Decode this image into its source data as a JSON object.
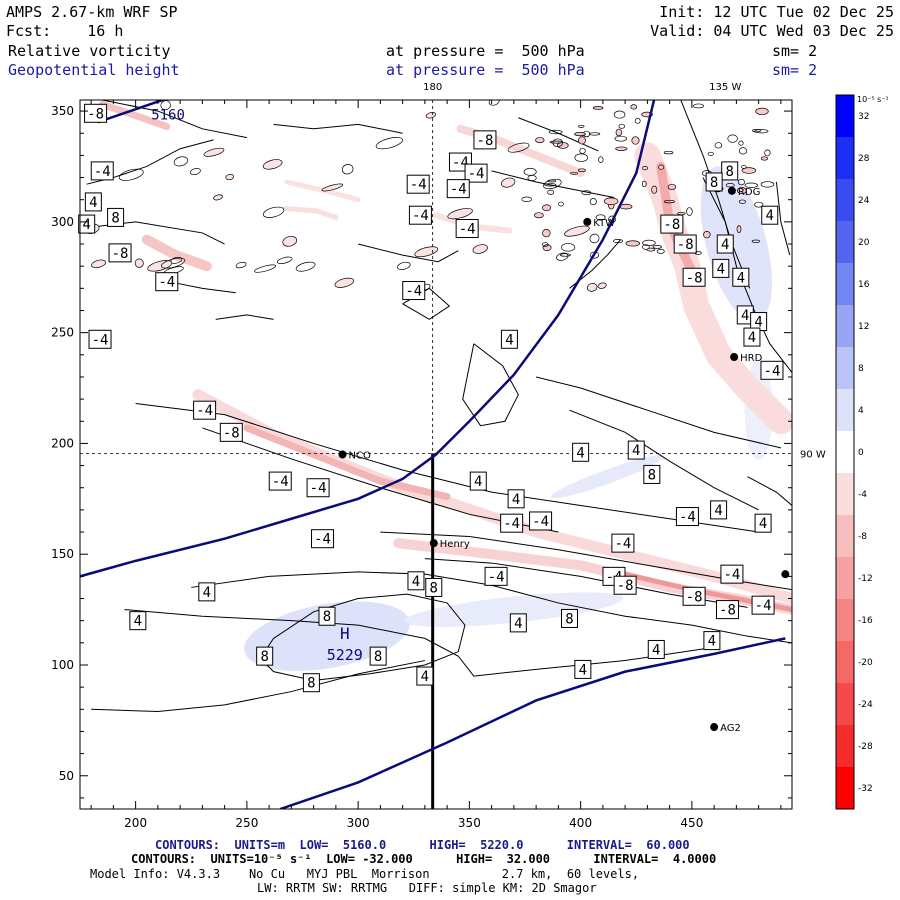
{
  "header": {
    "model": "AMPS 2.67-km WRF SP",
    "fcst": "Fcst:    16 h",
    "init": "Init: 12 UTC Tue 02 Dec 25",
    "valid": "Valid: 04 UTC Wed 03 Dec 25",
    "field1_name": "Relative vorticity",
    "field1_level": "at pressure =  500 hPa",
    "field1_sm": "sm= 2",
    "field2_name": "Geopotential height",
    "field2_level": "at pressure =  500 hPa",
    "field2_sm": "sm= 2"
  },
  "footer": {
    "contours1": "CONTOURS:  UNITS=m  LOW=  5160.0      HIGH=  5220.0      INTERVAL=  60.000",
    "contours2": "CONTOURS:  UNITS=10⁻⁵ s⁻¹  LOW= -32.000      HIGH=  32.000      INTERVAL=  4.0000",
    "model_info": "Model Info: V4.3.3    No Cu   MYJ PBL  Morrison          2.7 km,  60 levels,",
    "model_info2": "LW: RRTM SW: RRTMG   DIFF: simple KM: 2D Smagor"
  },
  "chart_data": {
    "type": "contour",
    "xlim": [
      175,
      495
    ],
    "ylim": [
      35,
      355
    ],
    "x_ticks": [
      200,
      250,
      300,
      350,
      400,
      450
    ],
    "y_ticks": [
      50,
      100,
      150,
      200,
      250,
      300,
      350
    ],
    "grid_annotations": [
      {
        "text": "180",
        "x": 333.5,
        "y": 355
      },
      {
        "text": "135 W",
        "x": 465,
        "y": 355
      },
      {
        "text": "90 W",
        "x": 495,
        "y": 195.5
      }
    ],
    "crosshair": {
      "x": 333.5,
      "y": 195.5
    },
    "cross_section_line": {
      "x": 333.5,
      "y_from": 35,
      "y_to": 195.5
    },
    "stations": [
      {
        "name": "NCO",
        "x": 293,
        "y": 195
      },
      {
        "name": "Henry",
        "x": 334,
        "y": 155
      },
      {
        "name": "KTW",
        "x": 403,
        "y": 300
      },
      {
        "name": "RDG",
        "x": 468,
        "y": 314
      },
      {
        "name": "HRD",
        "x": 469,
        "y": 239
      },
      {
        "name": "AG2",
        "x": 460,
        "y": 72
      },
      {
        "name": "",
        "x": 492,
        "y": 141
      }
    ],
    "height_contours": [
      {
        "value": 5160,
        "label_text": "5160",
        "label": {
          "x": 207,
          "y": 349
        },
        "points": [
          [
            175,
            140
          ],
          [
            200,
            147
          ],
          [
            240,
            157
          ],
          [
            270,
            166
          ],
          [
            300,
            175
          ],
          [
            320,
            184
          ],
          [
            335,
            195
          ],
          [
            350,
            210
          ],
          [
            370,
            231
          ],
          [
            390,
            258
          ],
          [
            410,
            292
          ],
          [
            425,
            322
          ],
          [
            433,
            355
          ]
        ]
      },
      {
        "value": 5160,
        "points": [
          [
            183,
            345
          ],
          [
            215,
            356
          ]
        ]
      },
      {
        "value": 5220,
        "points": [
          [
            265,
            35
          ],
          [
            300,
            47
          ],
          [
            340,
            65
          ],
          [
            380,
            84
          ],
          [
            420,
            97
          ],
          [
            460,
            105
          ],
          [
            492,
            112
          ]
        ]
      }
    ],
    "height_max": {
      "label": "H",
      "value": "5229",
      "x": 294,
      "y": 110
    },
    "vorticity_labels": [
      {
        "t": "-8",
        "x": 182,
        "y": 349
      },
      {
        "t": "-8",
        "x": 357,
        "y": 337
      },
      {
        "t": "-4",
        "x": 346,
        "y": 327
      },
      {
        "t": "-4",
        "x": 353,
        "y": 322
      },
      {
        "t": "-4",
        "x": 185,
        "y": 323
      },
      {
        "t": "-4",
        "x": 345,
        "y": 315
      },
      {
        "t": "-4",
        "x": 327,
        "y": 317
      },
      {
        "t": "-4",
        "x": 328,
        "y": 303
      },
      {
        "t": "-4",
        "x": 349,
        "y": 297
      },
      {
        "t": "4",
        "x": 181,
        "y": 309
      },
      {
        "t": "4",
        "x": 178,
        "y": 299
      },
      {
        "t": "8",
        "x": 191,
        "y": 302
      },
      {
        "t": "-8",
        "x": 193,
        "y": 286
      },
      {
        "t": "-4",
        "x": 214,
        "y": 273
      },
      {
        "t": "-4",
        "x": 325,
        "y": 269
      },
      {
        "t": "-4",
        "x": 184,
        "y": 247
      },
      {
        "t": "4",
        "x": 368,
        "y": 247
      },
      {
        "t": "-4",
        "x": 231,
        "y": 215
      },
      {
        "t": "-8",
        "x": 243,
        "y": 205
      },
      {
        "t": "-4",
        "x": 265,
        "y": 183
      },
      {
        "t": "-4",
        "x": 282,
        "y": 180
      },
      {
        "t": "4",
        "x": 354,
        "y": 183
      },
      {
        "t": "4",
        "x": 371,
        "y": 175
      },
      {
        "t": "-4",
        "x": 369,
        "y": 164
      },
      {
        "t": "-4",
        "x": 382,
        "y": 165
      },
      {
        "t": "-4",
        "x": 284,
        "y": 157
      },
      {
        "t": "4",
        "x": 326,
        "y": 138
      },
      {
        "t": "8",
        "x": 334,
        "y": 135
      },
      {
        "t": "-4",
        "x": 362,
        "y": 140
      },
      {
        "t": "-4",
        "x": 415,
        "y": 140
      },
      {
        "t": "-8",
        "x": 420,
        "y": 136
      },
      {
        "t": "4",
        "x": 232,
        "y": 133
      },
      {
        "t": "4",
        "x": 201,
        "y": 120
      },
      {
        "t": "8",
        "x": 286,
        "y": 122
      },
      {
        "t": "8",
        "x": 258,
        "y": 104
      },
      {
        "t": "8",
        "x": 309,
        "y": 104
      },
      {
        "t": "8",
        "x": 279,
        "y": 92
      },
      {
        "t": "4",
        "x": 330,
        "y": 95
      },
      {
        "t": "4",
        "x": 372,
        "y": 119
      },
      {
        "t": "8",
        "x": 395,
        "y": 121
      },
      {
        "t": "4",
        "x": 401,
        "y": 98
      },
      {
        "t": "4",
        "x": 434,
        "y": 107
      },
      {
        "t": "4",
        "x": 459,
        "y": 111
      },
      {
        "t": "-4",
        "x": 419,
        "y": 155
      },
      {
        "t": "4",
        "x": 400,
        "y": 196
      },
      {
        "t": "4",
        "x": 425,
        "y": 197
      },
      {
        "t": "8",
        "x": 432,
        "y": 186
      },
      {
        "t": "-4",
        "x": 448,
        "y": 167
      },
      {
        "t": "4",
        "x": 462,
        "y": 170
      },
      {
        "t": "4",
        "x": 482,
        "y": 164
      },
      {
        "t": "-8",
        "x": 451,
        "y": 131
      },
      {
        "t": "-8",
        "x": 466,
        "y": 125
      },
      {
        "t": "-4",
        "x": 468,
        "y": 141
      },
      {
        "t": "-4",
        "x": 482,
        "y": 127
      },
      {
        "t": "-8",
        "x": 441,
        "y": 299
      },
      {
        "t": "-8",
        "x": 447,
        "y": 290
      },
      {
        "t": "-8",
        "x": 451,
        "y": 275
      },
      {
        "t": "4",
        "x": 463,
        "y": 279
      },
      {
        "t": "4",
        "x": 472,
        "y": 275
      },
      {
        "t": "8",
        "x": 467,
        "y": 323
      },
      {
        "t": "8",
        "x": 460,
        "y": 318
      },
      {
        "t": "4",
        "x": 465,
        "y": 290
      },
      {
        "t": "4",
        "x": 485,
        "y": 303
      },
      {
        "t": "4",
        "x": 474,
        "y": 258
      },
      {
        "t": "4",
        "x": 480,
        "y": 255
      },
      {
        "t": "4",
        "x": 477,
        "y": 248
      },
      {
        "t": "-4",
        "x": 486,
        "y": 233
      }
    ],
    "colorbar": {
      "units": "10⁻⁵ s⁻¹",
      "ticks": [
        "32",
        "28",
        "24",
        "20",
        "16",
        "12",
        "8",
        "4",
        "0",
        "-4",
        "-8",
        "-12",
        "-16",
        "-20",
        "-24",
        "-28",
        "-32"
      ],
      "colors": [
        "#0000ff",
        "#1c2ff5",
        "#3a4cf0",
        "#5466f0",
        "#7486f2",
        "#97a5f3",
        "#bac4f6",
        "#dde1f9",
        "#ffffff",
        "#fadede",
        "#f5bfbf",
        "#f5a2a2",
        "#f58585",
        "#f56868",
        "#f54a4a",
        "#f52c2c",
        "#ff0000"
      ]
    }
  }
}
